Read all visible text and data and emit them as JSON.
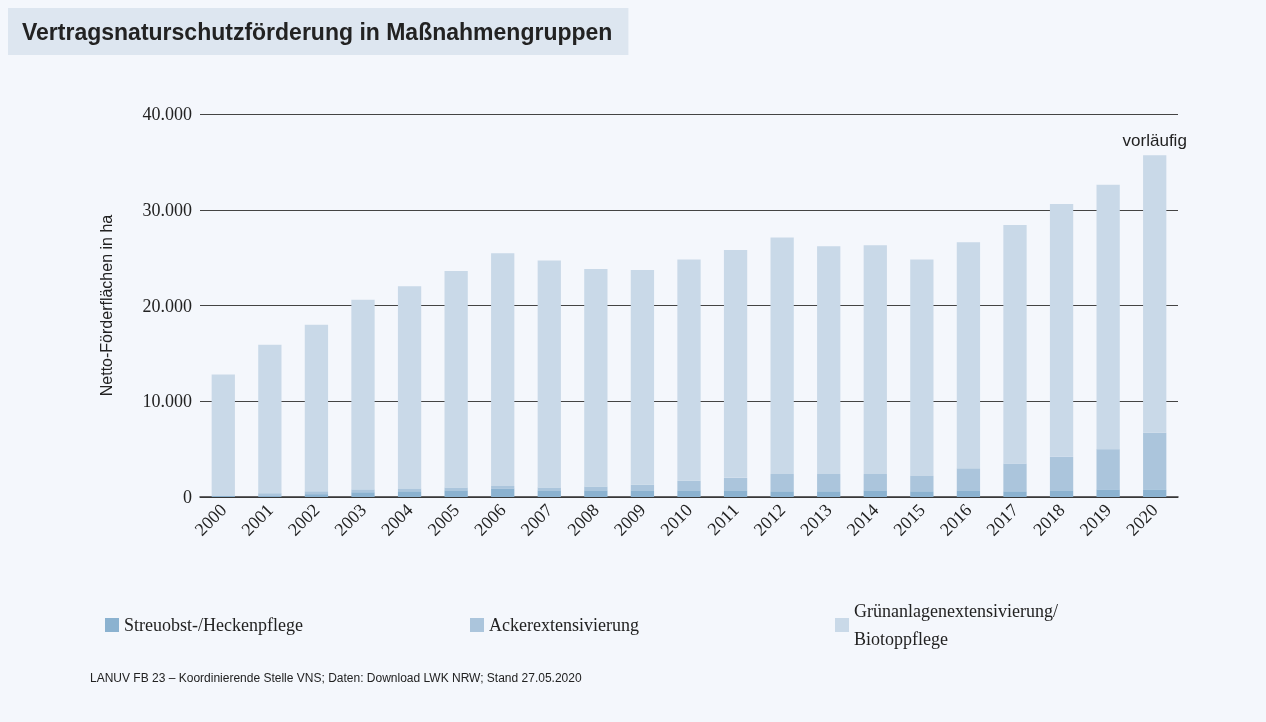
{
  "chart_data": {
    "type": "bar",
    "title": "Vertragsnaturschutzförderung in Maßnahmengruppen",
    "ylabel": "Netto-Förderflächen in ha",
    "categories": [
      "2000",
      "2001",
      "2002",
      "2003",
      "2004",
      "2005",
      "2006",
      "2007",
      "2008",
      "2009",
      "2010",
      "2011",
      "2012",
      "2013",
      "2014",
      "2015",
      "2016",
      "2017",
      "2018",
      "2019",
      "2020"
    ],
    "stacked": true,
    "series": [
      {
        "name": "Streuobst-/Heckenpflege",
        "color": "#8bb2d0",
        "values": [
          100,
          100,
          300,
          500,
          600,
          700,
          900,
          700,
          700,
          700,
          700,
          700,
          600,
          600,
          700,
          600,
          700,
          600,
          700,
          800,
          800
        ]
      },
      {
        "name": "Ackerextensivierung",
        "color": "#abc5dc",
        "values": [
          0,
          300,
          300,
          300,
          300,
          300,
          250,
          300,
          400,
          600,
          1000,
          1300,
          1800,
          1800,
          1700,
          1600,
          2300,
          2900,
          3500,
          4200,
          5900
        ]
      },
      {
        "name": "Grünanlagenextensivierung/ Biotoppflege",
        "color": "#c9d9e8",
        "values": [
          12700,
          15500,
          17400,
          19800,
          21100,
          22600,
          24300,
          23700,
          22700,
          22400,
          23100,
          23800,
          24700,
          23800,
          23900,
          22600,
          23600,
          24900,
          26400,
          27600,
          29000
        ]
      }
    ],
    "ylim": [
      0,
      40000
    ],
    "yticks": [
      {
        "value": 0,
        "label": "0"
      },
      {
        "value": 10000,
        "label": "10.000"
      },
      {
        "value": 20000,
        "label": "20.000"
      },
      {
        "value": 30000,
        "label": "30.000"
      },
      {
        "value": 40000,
        "label": "40.000"
      }
    ],
    "grid": "y",
    "legend": "bottom",
    "annotations": [
      {
        "text": "vorläufig",
        "x": "2020",
        "y": 35700
      },
      "LANUV FB 23 – Koordinierende Stelle VNS; Daten: Download LWK NRW; Stand 27.05.2020"
    ]
  }
}
